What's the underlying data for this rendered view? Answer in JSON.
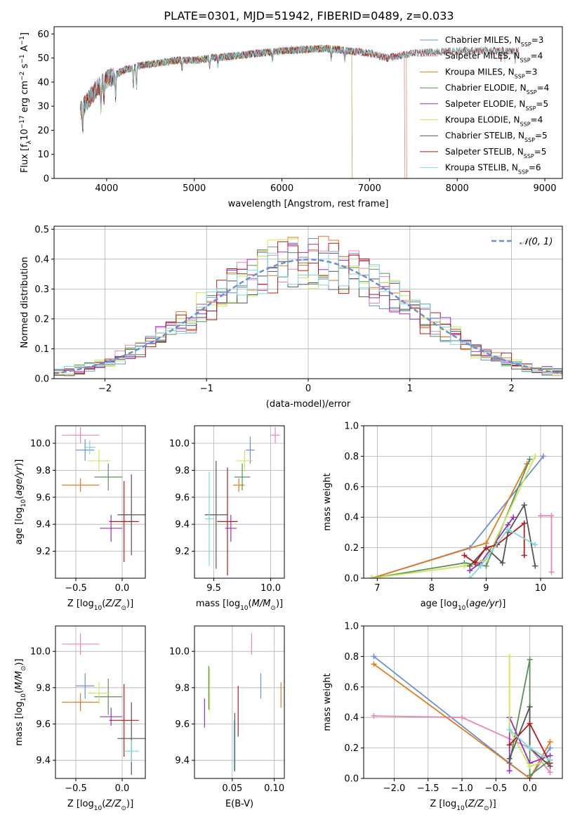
{
  "figure_title": "PLATE=0301, MJD=51942, FIBERID=0489, z=0.033",
  "colors": {
    "Chabrier MILES": "#6b8fd6",
    "Salpeter MILES": "#e887b8",
    "Kroupa MILES": "#e07b1e",
    "Chabrier ELODIE": "#5b8f5b",
    "Salpeter ELODIE": "#9b2fbf",
    "Kroupa ELODIE": "#c8e85a",
    "Chabrier STELIB": "#555555",
    "Salpeter STELIB": "#b01c1c",
    "Kroupa STELIB": "#7ed9de"
  },
  "chart_data": [
    {
      "id": "spectrum",
      "type": "line",
      "title": "PLATE=0301, MJD=51942, FIBERID=0489, z=0.033",
      "xlabel": "wavelength [Angstrom, rest frame]",
      "ylabel": "Flux [f_λ 10^-17 erg cm^-2 s^-1 A^-1]",
      "xlim": [
        3400,
        9200
      ],
      "ylim": [
        0,
        63
      ],
      "xticks": [
        4000,
        5000,
        6000,
        7000,
        8000,
        9000
      ],
      "yticks": [
        0,
        10,
        20,
        30,
        40,
        50,
        60
      ],
      "grid": false,
      "legend_position": "top-right",
      "legend": [
        {
          "model": "Chabrier MILES",
          "nssp": "3"
        },
        {
          "model": "Salpeter MILES",
          "nssp": "4"
        },
        {
          "model": "Kroupa MILES",
          "nssp": "3"
        },
        {
          "model": "Chabrier ELODIE",
          "nssp": "4"
        },
        {
          "model": "Salpeter ELODIE",
          "nssp": "5"
        },
        {
          "model": "Kroupa ELODIE",
          "nssp": "4"
        },
        {
          "model": "Chabrier STELIB",
          "nssp": "5"
        },
        {
          "model": "Salpeter STELIB",
          "nssp": "5"
        },
        {
          "model": "Kroupa STELIB",
          "nssp": "6"
        }
      ],
      "continuum": {
        "x": [
          3700,
          3800,
          3900,
          4000,
          4100,
          4200,
          4400,
          4600,
          4800,
          5000,
          5200,
          5500,
          6000,
          6500,
          7000,
          7200,
          7500,
          8000,
          8500,
          8800
        ],
        "y": [
          28,
          33,
          38,
          41,
          43,
          45,
          47,
          48,
          49,
          49,
          50,
          51,
          53,
          54,
          52,
          50,
          52,
          53,
          53,
          53
        ]
      },
      "model_ranges": [
        {
          "model": "Chabrier MILES",
          "x": [
            3700,
            7400
          ]
        },
        {
          "model": "Salpeter MILES",
          "x": [
            3700,
            7400
          ]
        },
        {
          "model": "Kroupa MILES",
          "x": [
            3700,
            7420
          ]
        },
        {
          "model": "Chabrier ELODIE",
          "x": [
            3700,
            6800
          ]
        },
        {
          "model": "Salpeter ELODIE",
          "x": [
            3700,
            6800
          ]
        },
        {
          "model": "Kroupa ELODIE",
          "x": [
            3700,
            6800
          ]
        },
        {
          "model": "Chabrier STELIB",
          "x": [
            3700,
            8700
          ]
        },
        {
          "model": "Salpeter STELIB",
          "x": [
            3700,
            8700
          ]
        },
        {
          "model": "Kroupa STELIB",
          "x": [
            3700,
            8700
          ]
        }
      ]
    },
    {
      "id": "residuals",
      "type": "line",
      "xlabel": "(data-model)/error",
      "ylabel": "Normed distribution",
      "xlim": [
        -2.5,
        2.5
      ],
      "ylim": [
        0,
        0.51
      ],
      "xticks": [
        -2,
        -1,
        0,
        1,
        2
      ],
      "yticks": [
        0.0,
        0.1,
        0.2,
        0.3,
        0.4,
        0.5
      ],
      "grid": true,
      "legend_position": "top-right",
      "reference_curve": {
        "label": "𝒩(0, 1)",
        "mean": 0,
        "sigma": 1
      },
      "histogram_bin_width": 0.1,
      "histogram_envelope": "normal"
    },
    {
      "id": "age-vs-Z",
      "type": "scatter",
      "xlabel": "Z [log10(Z/Z⊙)]",
      "ylabel": "age [log10(age/yr)]",
      "xlim": [
        -0.72,
        0.25
      ],
      "ylim": [
        9.0,
        10.13
      ],
      "xticks": [
        -0.5,
        0.0
      ],
      "yticks": [
        9.2,
        9.4,
        9.6,
        9.8,
        10.0
      ],
      "grid": true,
      "points": [
        {
          "model": "Chabrier MILES",
          "x": -0.4,
          "xerr": 0.1,
          "y": 9.95,
          "yerr": 0.08
        },
        {
          "model": "Salpeter MILES",
          "x": -0.45,
          "xerr": 0.2,
          "y": 10.06,
          "yerr": 0.06
        },
        {
          "model": "Kroupa MILES",
          "x": -0.45,
          "xerr": 0.2,
          "y": 9.69,
          "yerr": 0.05
        },
        {
          "model": "Chabrier ELODIE",
          "x": -0.15,
          "xerr": 0.15,
          "y": 9.75,
          "yerr": 0.1
        },
        {
          "model": "Salpeter ELODIE",
          "x": -0.12,
          "xerr": 0.12,
          "y": 9.37,
          "yerr": 0.1
        },
        {
          "model": "Kroupa ELODIE",
          "x": -0.25,
          "xerr": 0.12,
          "y": 9.87,
          "yerr": 0.08
        },
        {
          "model": "Chabrier STELIB",
          "x": 0.1,
          "xerr": 0.15,
          "y": 9.47,
          "yerr": 0.3
        },
        {
          "model": "Salpeter STELIB",
          "x": 0.02,
          "xerr": 0.16,
          "y": 9.42,
          "yerr": 0.3
        },
        {
          "model": "Kroupa STELIB",
          "x": -0.35,
          "xerr": 0.06,
          "y": 9.97,
          "yerr": 0.05
        }
      ]
    },
    {
      "id": "age-vs-mass",
      "type": "scatter",
      "xlabel": "mass [log10(M/M⊙)]",
      "ylabel": "",
      "xlim": [
        9.33,
        10.12
      ],
      "ylim": [
        9.0,
        10.13
      ],
      "xticks": [
        9.5,
        10.0
      ],
      "yticks": [
        9.2,
        9.4,
        9.6,
        9.8,
        10.0
      ],
      "grid": true,
      "points": [
        {
          "model": "Chabrier MILES",
          "x": 9.82,
          "xerr": 0.04,
          "y": 9.95,
          "yerr": 0.1
        },
        {
          "model": "Salpeter MILES",
          "x": 10.04,
          "xerr": 0.04,
          "y": 10.06,
          "yerr": 0.06
        },
        {
          "model": "Kroupa MILES",
          "x": 9.72,
          "xerr": 0.05,
          "y": 9.69,
          "yerr": 0.05
        },
        {
          "model": "Chabrier ELODIE",
          "x": 9.75,
          "xerr": 0.07,
          "y": 9.75,
          "yerr": 0.1
        },
        {
          "model": "Salpeter ELODIE",
          "x": 9.65,
          "xerr": 0.05,
          "y": 9.37,
          "yerr": 0.1
        },
        {
          "model": "Kroupa ELODIE",
          "x": 9.77,
          "xerr": 0.07,
          "y": 9.87,
          "yerr": 0.08
        },
        {
          "model": "Chabrier STELIB",
          "x": 9.52,
          "xerr": 0.1,
          "y": 9.47,
          "yerr": 0.4
        },
        {
          "model": "Salpeter STELIB",
          "x": 9.62,
          "xerr": 0.09,
          "y": 9.42,
          "yerr": 0.4
        },
        {
          "model": "Kroupa STELIB",
          "x": 9.46,
          "xerr": 0.04,
          "y": 9.44,
          "yerr": 0.35
        }
      ]
    },
    {
      "id": "massweight-vs-age",
      "type": "line",
      "xlabel": "age [log10(age/yr)]",
      "ylabel": "mass weight",
      "xlim": [
        6.75,
        10.4
      ],
      "ylim": [
        0,
        1.0
      ],
      "xticks": [
        7,
        8,
        9,
        10
      ],
      "yticks": [
        0.0,
        0.2,
        0.4,
        0.6,
        0.8,
        1.0
      ],
      "grid": true,
      "series": [
        {
          "model": "Chabrier MILES",
          "x": [
            6.9,
            8.7,
            10.05
          ],
          "y": [
            0.0,
            0.2,
            0.8
          ]
        },
        {
          "model": "Salpeter MILES",
          "x": [
            10.0,
            10.2,
            10.2
          ],
          "y": [
            0.41,
            0.41,
            0.04
          ]
        },
        {
          "model": "Kroupa MILES",
          "x": [
            6.9,
            9.0,
            9.75
          ],
          "y": [
            0.0,
            0.23,
            0.75
          ]
        },
        {
          "model": "Chabrier ELODIE",
          "x": [
            6.9,
            8.6,
            9.0,
            9.8
          ],
          "y": [
            0.0,
            0.1,
            0.08,
            0.78
          ]
        },
        {
          "model": "Salpeter ELODIE",
          "x": [
            8.7,
            8.9,
            9.5,
            9.4
          ],
          "y": [
            0.05,
            0.1,
            0.4,
            0.35
          ]
        },
        {
          "model": "Kroupa ELODIE",
          "x": [
            6.9,
            8.6,
            9.0,
            9.9
          ],
          "y": [
            0.0,
            0.08,
            0.12,
            0.8
          ]
        },
        {
          "model": "Chabrier STELIB",
          "x": [
            8.7,
            9.0,
            9.3,
            9.4,
            9.7,
            9.9
          ],
          "y": [
            0.08,
            0.2,
            0.1,
            0.3,
            0.48,
            0.08
          ]
        },
        {
          "model": "Salpeter STELIB",
          "x": [
            8.6,
            8.8,
            9.0,
            9.2,
            9.7,
            9.7
          ],
          "y": [
            0.15,
            0.1,
            0.2,
            0.22,
            0.36,
            0.15
          ]
        },
        {
          "model": "Kroupa STELIB",
          "x": [
            8.7,
            8.9,
            9.4,
            9.9
          ],
          "y": [
            0.0,
            0.08,
            0.32,
            0.22
          ]
        }
      ]
    },
    {
      "id": "mass-vs-Z",
      "type": "scatter",
      "xlabel": "Z [log10(Z/Z⊙)]",
      "ylabel": "mass [log10(M/M⊙)]",
      "xlim": [
        -0.72,
        0.25
      ],
      "ylim": [
        9.3,
        10.14
      ],
      "xticks": [
        -0.5,
        0.0
      ],
      "yticks": [
        9.4,
        9.6,
        9.8,
        10.0
      ],
      "grid": true,
      "points": [
        {
          "model": "Chabrier MILES",
          "x": -0.4,
          "xerr": 0.1,
          "y": 9.81,
          "yerr": 0.07
        },
        {
          "model": "Salpeter MILES",
          "x": -0.45,
          "xerr": 0.2,
          "y": 10.04,
          "yerr": 0.06
        },
        {
          "model": "Kroupa MILES",
          "x": -0.45,
          "xerr": 0.2,
          "y": 9.72,
          "yerr": 0.05
        },
        {
          "model": "Chabrier ELODIE",
          "x": -0.15,
          "xerr": 0.15,
          "y": 9.75,
          "yerr": 0.1
        },
        {
          "model": "Salpeter ELODIE",
          "x": -0.12,
          "xerr": 0.12,
          "y": 9.64,
          "yerr": 0.05
        },
        {
          "model": "Kroupa ELODIE",
          "x": -0.25,
          "xerr": 0.12,
          "y": 9.77,
          "yerr": 0.06
        },
        {
          "model": "Chabrier STELIB",
          "x": 0.1,
          "xerr": 0.15,
          "y": 9.52,
          "yerr": 0.2
        },
        {
          "model": "Salpeter STELIB",
          "x": 0.02,
          "xerr": 0.16,
          "y": 9.62,
          "yerr": 0.2
        },
        {
          "model": "Kroupa STELIB",
          "x": 0.1,
          "xerr": 0.08,
          "y": 9.45,
          "yerr": 0.06
        }
      ]
    },
    {
      "id": "mass-vs-EBV",
      "type": "scatter",
      "xlabel": "E(B-V)",
      "ylabel": "",
      "xlim": [
        0.005,
        0.112
      ],
      "ylim": [
        9.3,
        10.14
      ],
      "xticks": [
        0.05,
        0.1
      ],
      "yticks": [
        9.4,
        9.6,
        9.8,
        10.0
      ],
      "grid": true,
      "points": [
        {
          "model": "Chabrier MILES",
          "x": 0.084,
          "xerr": 0,
          "y": 9.81,
          "yerr": 0.07
        },
        {
          "model": "Salpeter MILES",
          "x": 0.073,
          "xerr": 0,
          "y": 10.04,
          "yerr": 0.06
        },
        {
          "model": "Kroupa MILES",
          "x": 0.108,
          "xerr": 0,
          "y": 9.76,
          "yerr": 0.07
        },
        {
          "model": "Chabrier ELODIE",
          "x": 0.022,
          "xerr": 0,
          "y": 9.8,
          "yerr": 0.12
        },
        {
          "model": "Salpeter ELODIE",
          "x": 0.017,
          "xerr": 0,
          "y": 9.66,
          "yerr": 0.08
        },
        {
          "model": "Kroupa ELODIE",
          "x": 0.023,
          "xerr": 0,
          "y": 9.79,
          "yerr": 0.12
        },
        {
          "model": "Chabrier STELIB",
          "x": 0.053,
          "xerr": 0,
          "y": 9.5,
          "yerr": 0.16
        },
        {
          "model": "Salpeter STELIB",
          "x": 0.057,
          "xerr": 0,
          "y": 9.67,
          "yerr": 0.14
        },
        {
          "model": "Kroupa STELIB",
          "x": 0.052,
          "xerr": 0,
          "y": 9.48,
          "yerr": 0.14
        }
      ]
    },
    {
      "id": "massweight-vs-Z",
      "type": "line",
      "xlabel": "Z [log10(Z/Z⊙)]",
      "ylabel": "mass weight",
      "xlim": [
        -2.45,
        0.48
      ],
      "ylim": [
        0,
        1.0
      ],
      "xticks": [
        -2.0,
        -1.5,
        -1.0,
        -0.5,
        0.0
      ],
      "yticks": [
        0.0,
        0.2,
        0.4,
        0.6,
        0.8,
        1.0
      ],
      "grid": true,
      "series": [
        {
          "model": "Chabrier MILES",
          "x": [
            -2.3,
            -0.3,
            0.0,
            0.3
          ],
          "y": [
            0.8,
            0.1,
            0.0,
            0.2
          ]
        },
        {
          "model": "Salpeter MILES",
          "x": [
            -2.3,
            -1.0,
            0.0,
            0.3
          ],
          "y": [
            0.41,
            0.4,
            0.2,
            0.04
          ]
        },
        {
          "model": "Kroupa MILES",
          "x": [
            -2.3,
            0.0,
            0.3
          ],
          "y": [
            0.75,
            0.0,
            0.24
          ]
        },
        {
          "model": "Chabrier ELODIE",
          "x": [
            -0.3,
            0.0,
            0.0,
            0.3
          ],
          "y": [
            0.1,
            0.78,
            0.02,
            0.12
          ]
        },
        {
          "model": "Salpeter ELODIE",
          "x": [
            -0.3,
            -0.3,
            0.0,
            0.3
          ],
          "y": [
            0.05,
            0.4,
            0.1,
            0.15
          ]
        },
        {
          "model": "Kroupa ELODIE",
          "x": [
            -0.3,
            -0.3,
            0.0,
            0.3
          ],
          "y": [
            0.8,
            0.32,
            0.08,
            0.12
          ]
        },
        {
          "model": "Chabrier STELIB",
          "x": [
            -0.3,
            0.0,
            0.0,
            0.3
          ],
          "y": [
            0.13,
            0.47,
            0.2,
            0.08
          ]
        },
        {
          "model": "Salpeter STELIB",
          "x": [
            -0.3,
            0.0,
            0.3
          ],
          "y": [
            0.22,
            0.36,
            0.1
          ]
        },
        {
          "model": "Kroupa STELIB",
          "x": [
            -0.3,
            0.0,
            0.3
          ],
          "y": [
            0.32,
            0.2,
            0.12
          ]
        }
      ]
    }
  ]
}
